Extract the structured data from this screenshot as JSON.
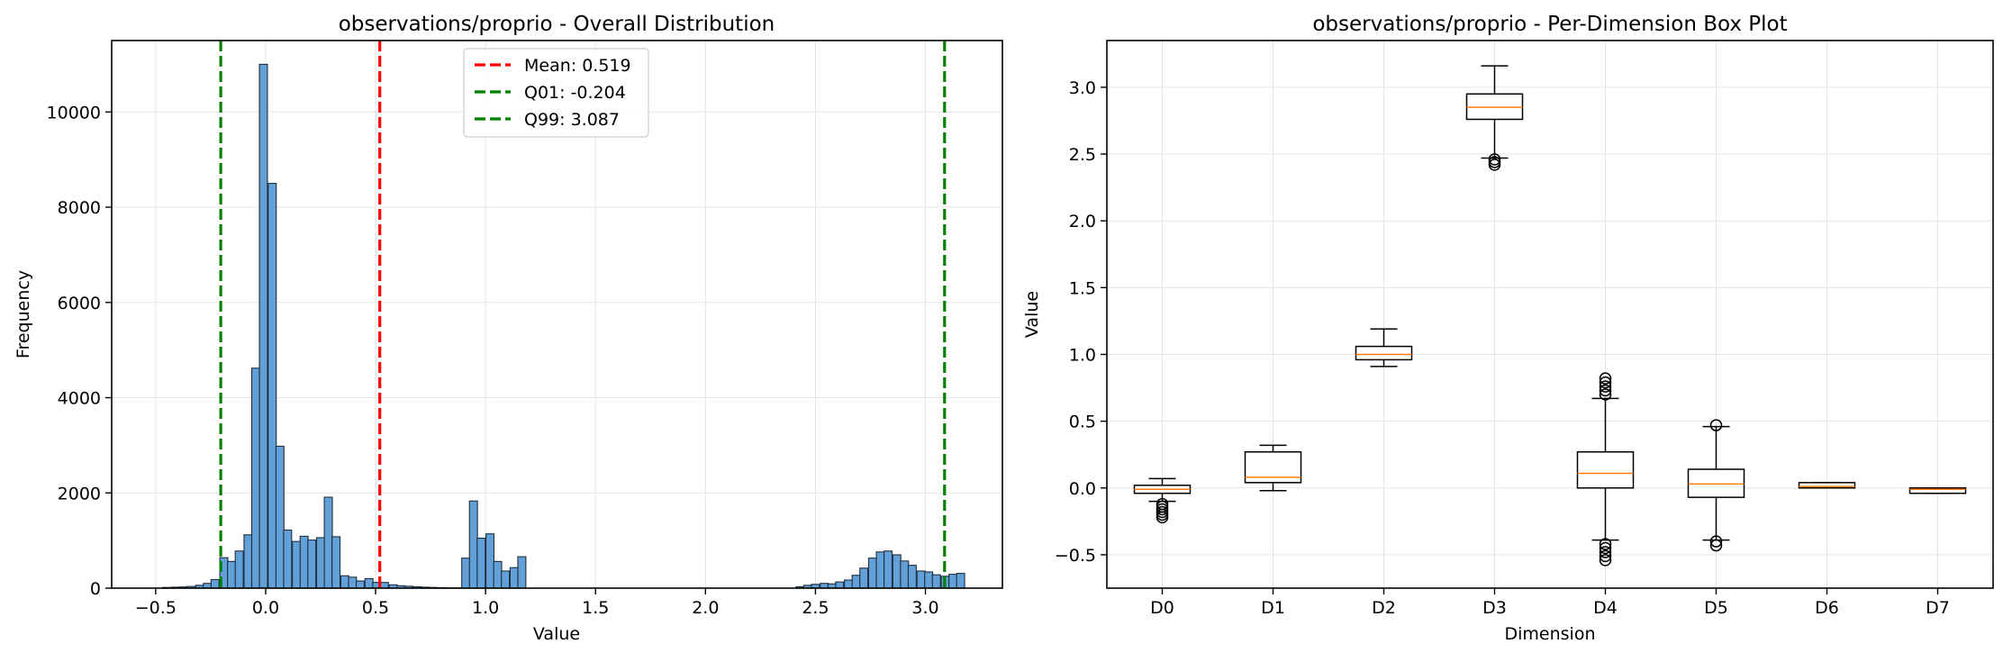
{
  "chart_data": [
    {
      "type": "bar",
      "title": "observations/proprio - Overall Distribution",
      "xlabel": "Value",
      "ylabel": "Frequency",
      "xlim": [
        -0.7,
        3.35
      ],
      "ylim": [
        0,
        11500
      ],
      "grid": true,
      "bar_color": "#5b9bd5",
      "edge_color": "#1f2f3f",
      "xticks": [
        -0.5,
        0.0,
        0.5,
        1.0,
        1.5,
        2.0,
        2.5,
        3.0
      ],
      "xtick_labels": [
        "−0.5",
        "0.0",
        "0.5",
        "1.0",
        "1.5",
        "2.0",
        "2.5",
        "3.0"
      ],
      "yticks": [
        0,
        2000,
        4000,
        6000,
        8000,
        10000
      ],
      "ytick_labels": [
        "0",
        "2000",
        "4000",
        "6000",
        "8000",
        "10000"
      ],
      "bin_width": 0.0365,
      "bins": [
        {
          "x": -0.45,
          "y": 15
        },
        {
          "x": -0.41,
          "y": 20
        },
        {
          "x": -0.375,
          "y": 25
        },
        {
          "x": -0.34,
          "y": 35
        },
        {
          "x": -0.3,
          "y": 60
        },
        {
          "x": -0.265,
          "y": 100
        },
        {
          "x": -0.23,
          "y": 180
        },
        {
          "x": -0.19,
          "y": 640
        },
        {
          "x": -0.155,
          "y": 560
        },
        {
          "x": -0.12,
          "y": 780
        },
        {
          "x": -0.08,
          "y": 1120
        },
        {
          "x": -0.045,
          "y": 4620
        },
        {
          "x": -0.01,
          "y": 11000
        },
        {
          "x": 0.03,
          "y": 8500
        },
        {
          "x": 0.065,
          "y": 2980
        },
        {
          "x": 0.1,
          "y": 1220
        },
        {
          "x": 0.14,
          "y": 980
        },
        {
          "x": 0.175,
          "y": 1090
        },
        {
          "x": 0.21,
          "y": 1010
        },
        {
          "x": 0.25,
          "y": 1060
        },
        {
          "x": 0.285,
          "y": 1910
        },
        {
          "x": 0.32,
          "y": 1080
        },
        {
          "x": 0.36,
          "y": 260
        },
        {
          "x": 0.395,
          "y": 230
        },
        {
          "x": 0.43,
          "y": 150
        },
        {
          "x": 0.47,
          "y": 200
        },
        {
          "x": 0.505,
          "y": 120
        },
        {
          "x": 0.54,
          "y": 120
        },
        {
          "x": 0.58,
          "y": 70
        },
        {
          "x": 0.615,
          "y": 50
        },
        {
          "x": 0.65,
          "y": 40
        },
        {
          "x": 0.69,
          "y": 30
        },
        {
          "x": 0.725,
          "y": 20
        },
        {
          "x": 0.76,
          "y": 15
        },
        {
          "x": 0.8,
          "y": 10
        },
        {
          "x": 0.835,
          "y": 5
        },
        {
          "x": 0.87,
          "y": 5
        },
        {
          "x": 0.91,
          "y": 630
        },
        {
          "x": 0.945,
          "y": 1830
        },
        {
          "x": 0.98,
          "y": 1050
        },
        {
          "x": 1.02,
          "y": 1140
        },
        {
          "x": 1.055,
          "y": 560
        },
        {
          "x": 1.09,
          "y": 360
        },
        {
          "x": 1.13,
          "y": 430
        },
        {
          "x": 1.165,
          "y": 660
        },
        {
          "x": 2.43,
          "y": 30
        },
        {
          "x": 2.465,
          "y": 60
        },
        {
          "x": 2.5,
          "y": 80
        },
        {
          "x": 2.54,
          "y": 100
        },
        {
          "x": 2.575,
          "y": 90
        },
        {
          "x": 2.61,
          "y": 130
        },
        {
          "x": 2.65,
          "y": 170
        },
        {
          "x": 2.685,
          "y": 270
        },
        {
          "x": 2.72,
          "y": 420
        },
        {
          "x": 2.76,
          "y": 630
        },
        {
          "x": 2.795,
          "y": 760
        },
        {
          "x": 2.83,
          "y": 780
        },
        {
          "x": 2.87,
          "y": 700
        },
        {
          "x": 2.905,
          "y": 570
        },
        {
          "x": 2.94,
          "y": 480
        },
        {
          "x": 2.98,
          "y": 360
        },
        {
          "x": 3.015,
          "y": 340
        },
        {
          "x": 3.05,
          "y": 280
        },
        {
          "x": 3.09,
          "y": 250
        },
        {
          "x": 3.125,
          "y": 290
        },
        {
          "x": 3.16,
          "y": 310
        }
      ],
      "vlines": [
        {
          "label": "Mean: 0.519",
          "x": 0.519,
          "color": "#ff0000"
        },
        {
          "label": "Q01: -0.204",
          "x": -0.204,
          "color": "#008000"
        },
        {
          "label": "Q99: 3.087",
          "x": 3.087,
          "color": "#008000"
        }
      ],
      "legend_placement": "top-center"
    },
    {
      "type": "box",
      "title": "observations/proprio - Per-Dimension Box Plot",
      "xlabel": "Dimension",
      "ylabel": "Value",
      "ylim": [
        -0.75,
        3.35
      ],
      "grid": true,
      "yticks": [
        -0.5,
        0.0,
        0.5,
        1.0,
        1.5,
        2.0,
        2.5,
        3.0
      ],
      "ytick_labels": [
        "−0.5",
        "0.0",
        "0.5",
        "1.0",
        "1.5",
        "2.0",
        "2.5",
        "3.0"
      ],
      "median_color": "#ff7f0e",
      "boxes": [
        {
          "label": "D0",
          "whisker_low": -0.1,
          "q1": -0.04,
          "median": -0.01,
          "q3": 0.02,
          "whisker_high": 0.07,
          "outliers": [
            -0.12,
            -0.14,
            -0.16,
            -0.18,
            -0.2,
            -0.22
          ]
        },
        {
          "label": "D1",
          "whisker_low": -0.02,
          "q1": 0.04,
          "median": 0.08,
          "q3": 0.27,
          "whisker_high": 0.32,
          "outliers": []
        },
        {
          "label": "D2",
          "whisker_low": 0.91,
          "q1": 0.96,
          "median": 1.0,
          "q3": 1.06,
          "whisker_high": 1.19,
          "outliers": []
        },
        {
          "label": "D3",
          "whisker_low": 2.47,
          "q1": 2.76,
          "median": 2.85,
          "q3": 2.95,
          "whisker_high": 3.16,
          "outliers": [
            2.42,
            2.44,
            2.46
          ]
        },
        {
          "label": "D4",
          "whisker_low": -0.39,
          "q1": 0.0,
          "median": 0.11,
          "q3": 0.27,
          "whisker_high": 0.67,
          "outliers": [
            0.7,
            0.73,
            0.76,
            0.79,
            0.82,
            -0.42,
            -0.45,
            -0.48,
            -0.51,
            -0.54
          ]
        },
        {
          "label": "D5",
          "whisker_low": -0.39,
          "q1": -0.07,
          "median": 0.03,
          "q3": 0.14,
          "whisker_high": 0.46,
          "outliers": [
            0.47,
            -0.4,
            -0.43
          ]
        },
        {
          "label": "D6",
          "whisker_low": 0.0,
          "q1": 0.0,
          "median": 0.01,
          "q3": 0.04,
          "whisker_high": 0.04,
          "outliers": []
        },
        {
          "label": "D7",
          "whisker_low": -0.04,
          "q1": -0.04,
          "median": -0.01,
          "q3": 0.0,
          "whisker_high": 0.0,
          "outliers": []
        }
      ]
    }
  ]
}
